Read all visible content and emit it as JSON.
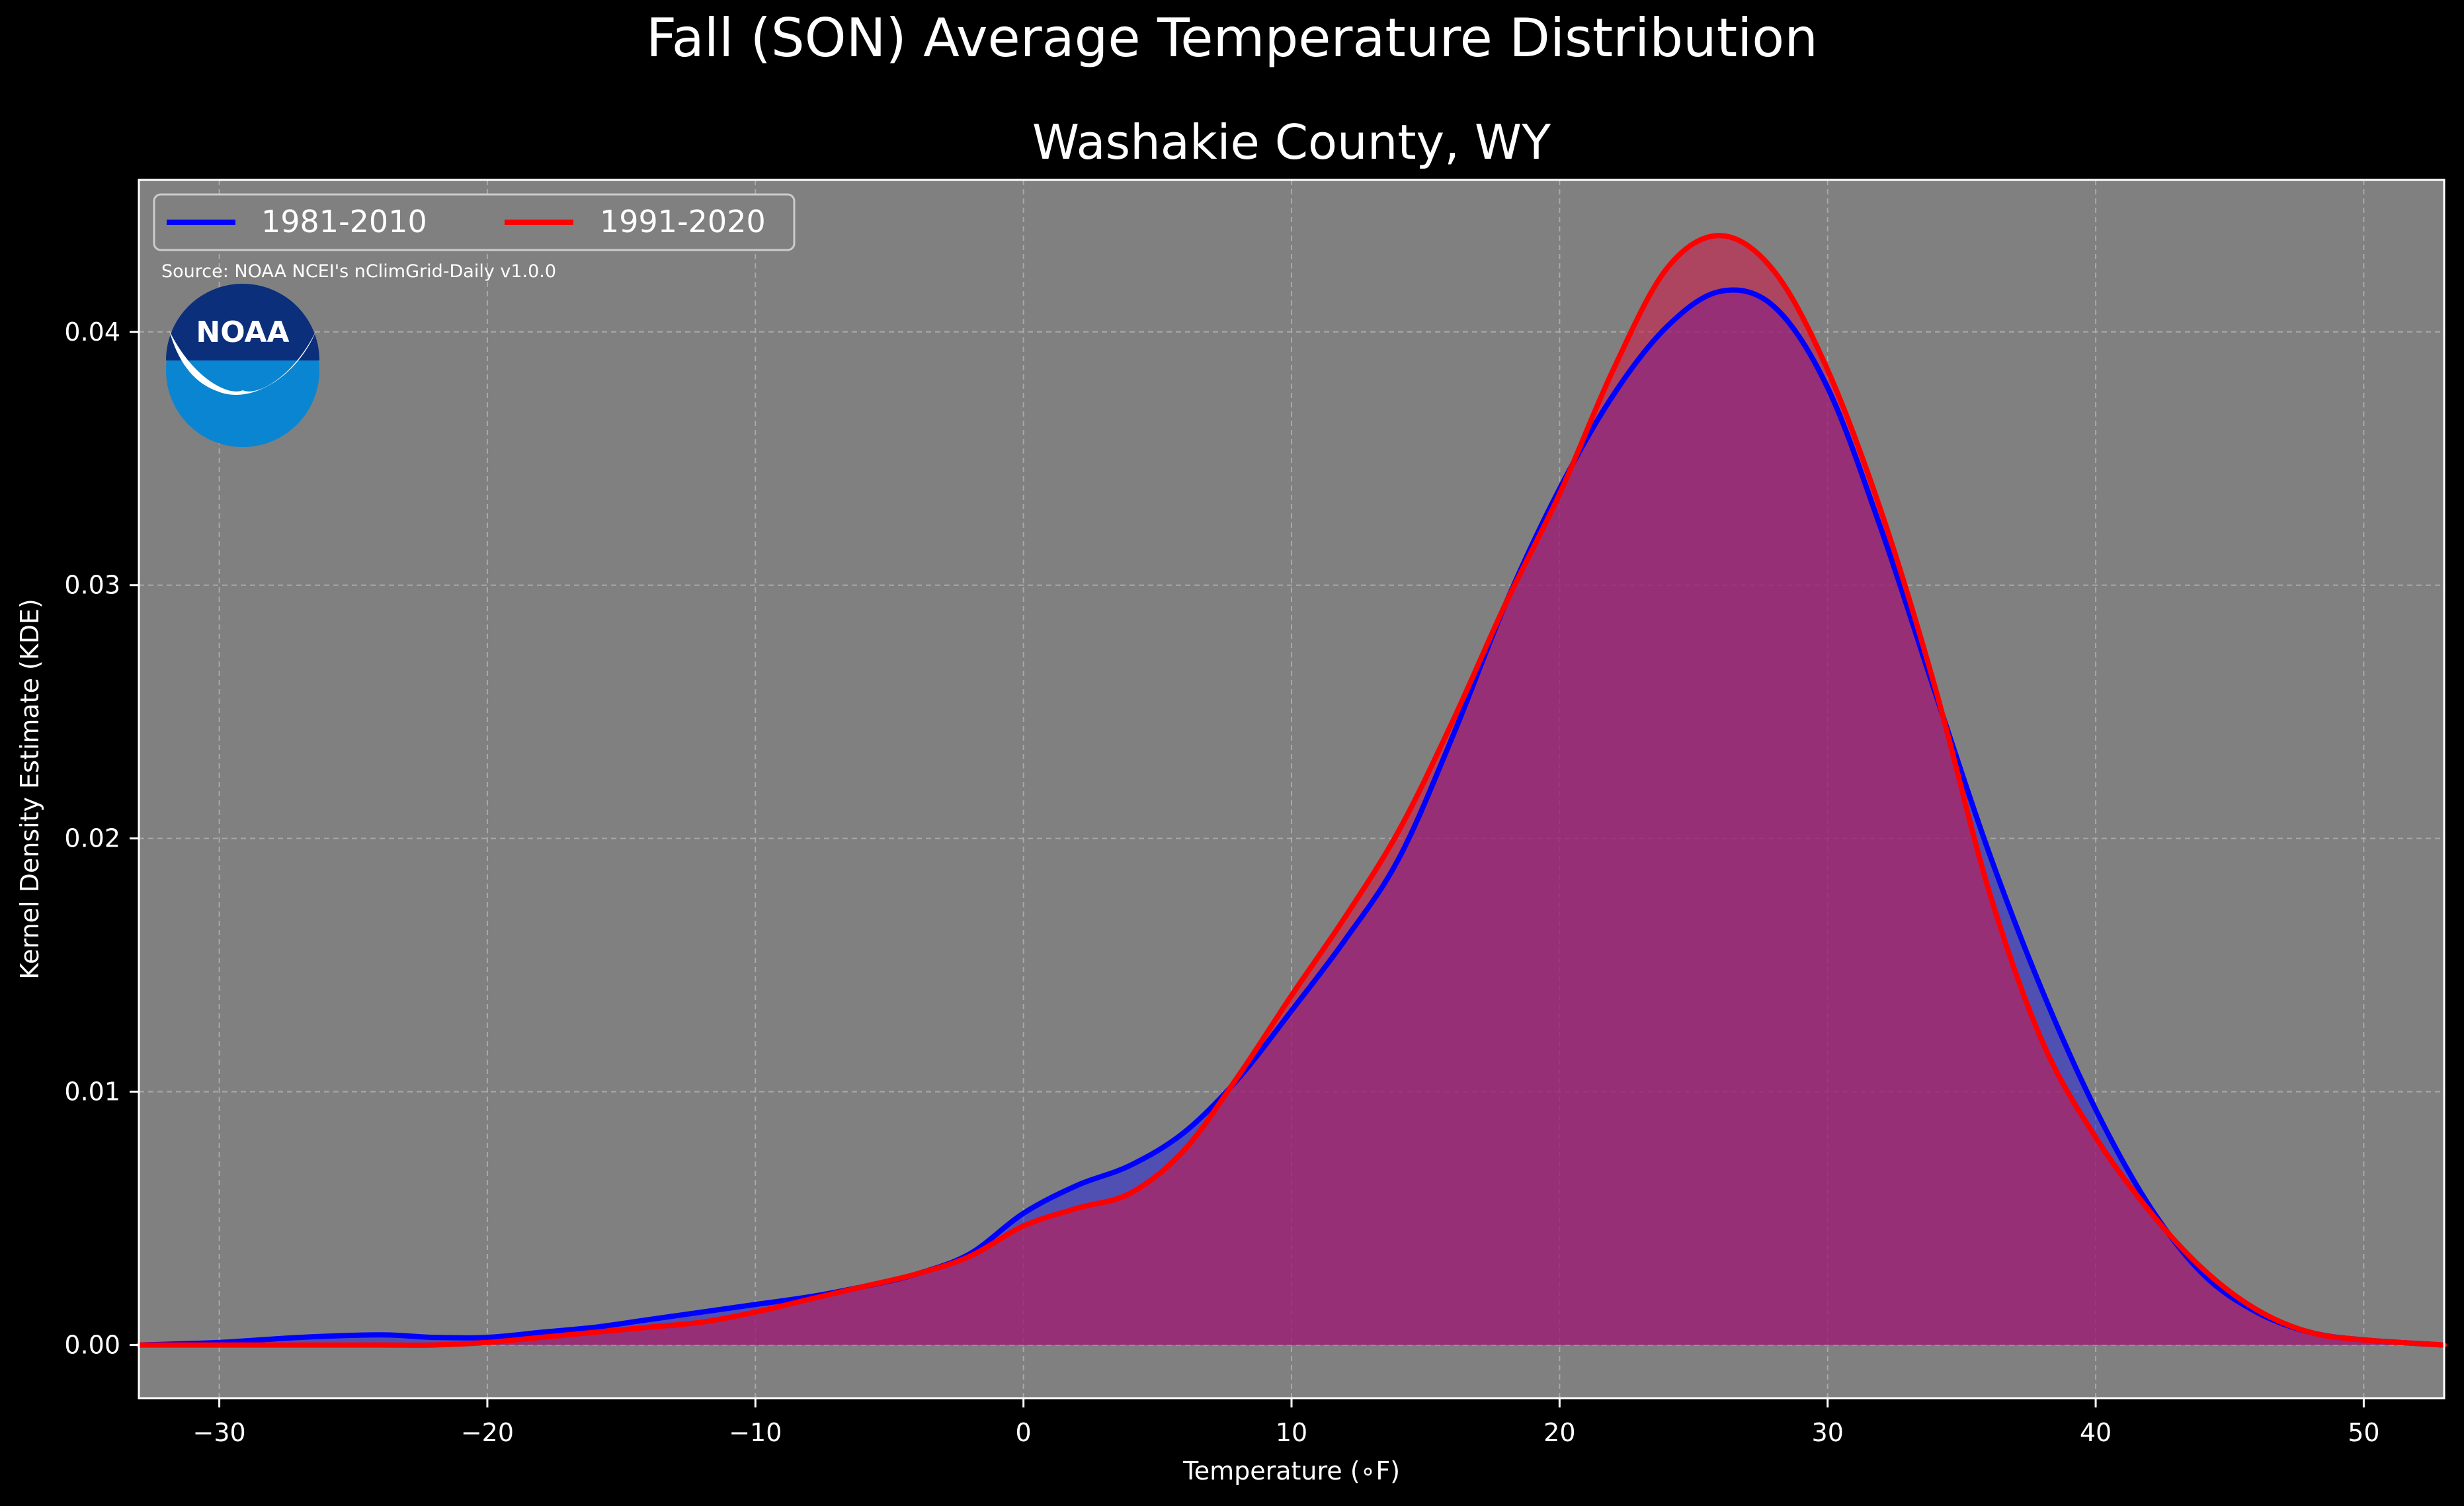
{
  "chart_data": {
    "type": "area",
    "title": "Fall (SON) Average Temperature Distribution",
    "subtitle": "Washakie County, WY",
    "xlabel": "Temperature (∘F)",
    "ylabel": "Kernel Density Estimate (KDE)",
    "source": "Source: NOAA NCEI's nClimGrid-Daily v1.0.0",
    "logo_text": "NOAA",
    "xlim": [
      -33,
      53
    ],
    "ylim": [
      -0.0021,
      0.046
    ],
    "x_ticks": [
      -30,
      -20,
      -10,
      0,
      10,
      20,
      30,
      40,
      50
    ],
    "x_tick_labels": [
      "−30",
      "−20",
      "−10",
      "0",
      "10",
      "20",
      "30",
      "40",
      "50"
    ],
    "y_ticks": [
      0.0,
      0.01,
      0.02,
      0.03,
      0.04
    ],
    "y_tick_labels": [
      "0.00",
      "0.01",
      "0.02",
      "0.03",
      "0.04"
    ],
    "grid": true,
    "legend_position": "top-left",
    "colors": {
      "background": "#000000",
      "plot_background": "#808080",
      "grid": "#b3b3b3",
      "axis": "#ffffff",
      "logo_blue": "#0a85d1",
      "logo_navy": "#0b2f7a"
    },
    "series": [
      {
        "name": "1981-2010",
        "color": "#0000ff",
        "fill": "rgba(40,40,220,0.55)",
        "points": [
          [
            -33,
            0.0
          ],
          [
            -30,
            0.0001
          ],
          [
            -27,
            0.0003
          ],
          [
            -24,
            0.0004
          ],
          [
            -22,
            0.0003
          ],
          [
            -20,
            0.0003
          ],
          [
            -18,
            0.0005
          ],
          [
            -16,
            0.0007
          ],
          [
            -14,
            0.001
          ],
          [
            -12,
            0.0013
          ],
          [
            -10,
            0.0016
          ],
          [
            -8,
            0.0019
          ],
          [
            -6,
            0.0023
          ],
          [
            -4,
            0.0028
          ],
          [
            -2,
            0.0036
          ],
          [
            0,
            0.0052
          ],
          [
            2,
            0.0063
          ],
          [
            4,
            0.0071
          ],
          [
            6,
            0.0084
          ],
          [
            8,
            0.0105
          ],
          [
            10,
            0.0132
          ],
          [
            12,
            0.016
          ],
          [
            14,
            0.0192
          ],
          [
            16,
            0.024
          ],
          [
            18,
            0.0293
          ],
          [
            20,
            0.0338
          ],
          [
            22,
            0.0375
          ],
          [
            24,
            0.0402
          ],
          [
            26,
            0.0416
          ],
          [
            28,
            0.041
          ],
          [
            30,
            0.0378
          ],
          [
            32,
            0.0322
          ],
          [
            34,
            0.0258
          ],
          [
            36,
            0.0195
          ],
          [
            38,
            0.014
          ],
          [
            40,
            0.0093
          ],
          [
            42,
            0.0055
          ],
          [
            44,
            0.0028
          ],
          [
            46,
            0.0013
          ],
          [
            48,
            0.0005
          ],
          [
            50,
            0.0002
          ],
          [
            53,
            0.0
          ]
        ]
      },
      {
        "name": "1991-2020",
        "color": "#ff0000",
        "fill": "rgba(210,20,70,0.55)",
        "points": [
          [
            -33,
            0.0
          ],
          [
            -30,
            0.0
          ],
          [
            -27,
            0.0
          ],
          [
            -24,
            0.0
          ],
          [
            -22,
            0.0
          ],
          [
            -20,
            0.0001
          ],
          [
            -18,
            0.0003
          ],
          [
            -16,
            0.0005
          ],
          [
            -14,
            0.0007
          ],
          [
            -12,
            0.0009
          ],
          [
            -10,
            0.0013
          ],
          [
            -8,
            0.0018
          ],
          [
            -6,
            0.0023
          ],
          [
            -4,
            0.0028
          ],
          [
            -2,
            0.0035
          ],
          [
            0,
            0.0047
          ],
          [
            2,
            0.0054
          ],
          [
            4,
            0.006
          ],
          [
            6,
            0.0077
          ],
          [
            8,
            0.0106
          ],
          [
            10,
            0.0138
          ],
          [
            12,
            0.0169
          ],
          [
            14,
            0.0203
          ],
          [
            16,
            0.0246
          ],
          [
            18,
            0.0293
          ],
          [
            20,
            0.0336
          ],
          [
            22,
            0.0385
          ],
          [
            24,
            0.0425
          ],
          [
            26,
            0.0438
          ],
          [
            28,
            0.0424
          ],
          [
            30,
            0.0385
          ],
          [
            32,
            0.0329
          ],
          [
            34,
            0.026
          ],
          [
            36,
            0.018
          ],
          [
            38,
            0.012
          ],
          [
            40,
            0.0082
          ],
          [
            42,
            0.0053
          ],
          [
            44,
            0.003
          ],
          [
            46,
            0.0014
          ],
          [
            48,
            0.0005
          ],
          [
            50,
            0.0002
          ],
          [
            53,
            0.0
          ]
        ]
      }
    ]
  }
}
